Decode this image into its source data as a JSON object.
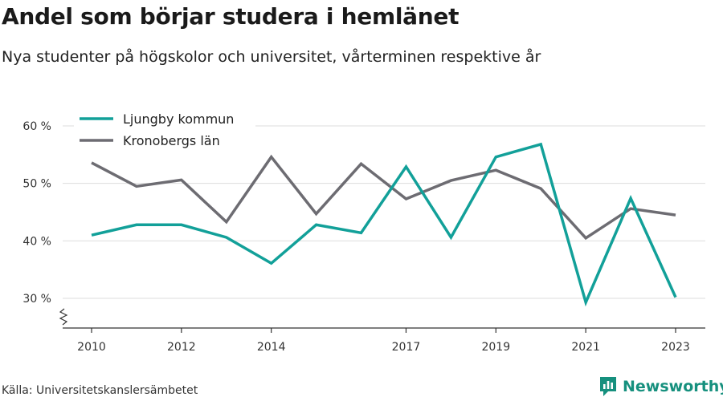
{
  "title": "Andel som börjar studera i hemlänet",
  "subtitle": "Nya studenter på högskolor och universitet, vårterminen respektive år",
  "source": "Källa: Universitetskanslersämbetet",
  "brand": {
    "name": "Newsworthy",
    "color": "#16907e"
  },
  "chart_data": {
    "type": "line",
    "x": [
      2010,
      2011,
      2012,
      2013,
      2014,
      2015,
      2016,
      2017,
      2018,
      2019,
      2020,
      2021,
      2022,
      2023
    ],
    "x_ticks": [
      "2010",
      "2012",
      "2014",
      "2017",
      "2019",
      "2021",
      "2023"
    ],
    "y_ticks": [
      "60 %",
      "50 %",
      "40 %",
      "30 %"
    ],
    "ylim": [
      25,
      62
    ],
    "grid": true,
    "legend_position": "top-left",
    "series": [
      {
        "name": "Ljungby kommun",
        "color": "#12a099",
        "values": [
          41,
          42.8,
          42.8,
          40.6,
          36.1,
          42.8,
          41.4,
          52.9,
          40.6,
          54.6,
          56.8,
          29.3,
          47.4,
          30.2
        ]
      },
      {
        "name": "Kronobergs län",
        "color": "#6d6c72",
        "values": [
          53.6,
          49.5,
          50.6,
          43.3,
          54.6,
          44.7,
          53.4,
          47.3,
          50.5,
          52.3,
          49.1,
          40.5,
          45.6,
          44.5
        ]
      }
    ]
  }
}
